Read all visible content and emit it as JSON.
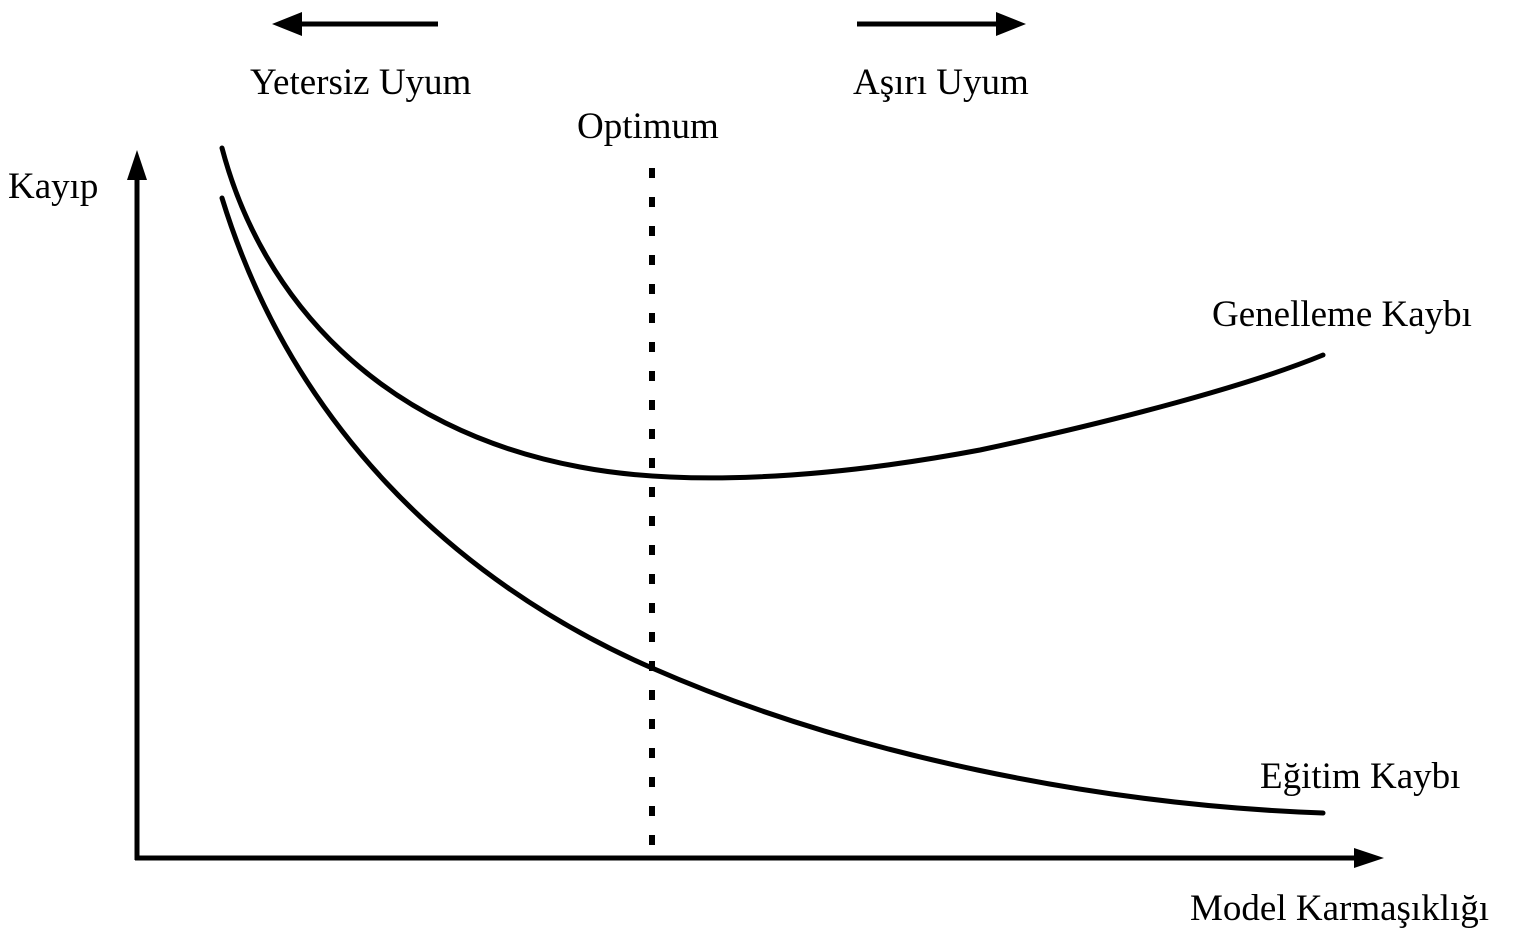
{
  "labels": {
    "underfit": "Yetersiz Uyum",
    "overfit": "Aşırı Uyum",
    "optimum": "Optimum",
    "y_axis": "Kayıp",
    "x_axis": "Model Karmaşıklığı",
    "generalization_loss": "Genelleme Kaybı",
    "training_loss": "Eğitim Kaybı"
  },
  "colors": {
    "stroke": "#000000",
    "background": "#ffffff"
  }
}
